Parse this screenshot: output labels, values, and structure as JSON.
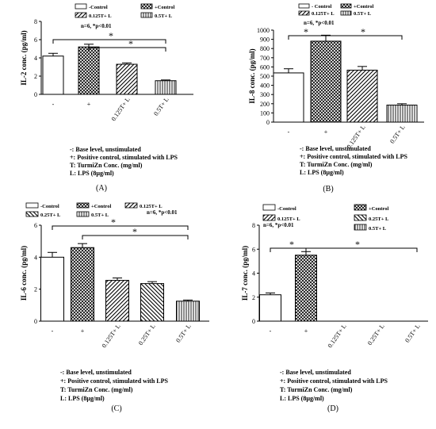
{
  "chart_data": [
    {
      "panel": "(A)",
      "type": "bar",
      "ylabel": "IL-2 conc. (pg/ml)",
      "ylim": [
        0,
        8
      ],
      "yticks": [
        "0",
        "2",
        "4",
        "6",
        "8"
      ],
      "categories": [
        "-",
        "+",
        "0.125T+ L",
        "0.5T+ L"
      ],
      "values": [
        4.2,
        5.2,
        3.3,
        1.5
      ],
      "errors": [
        0.3,
        0.3,
        0.15,
        0.08
      ],
      "patterns": [
        "blank",
        "grid",
        "diag",
        "vert"
      ],
      "legend": [
        "-Control",
        "+Control",
        "0.125T+ L",
        "0.5T+ L"
      ],
      "stat": "n=6, *p<0.01",
      "star": "*",
      "footnotes": [
        "-: Base level, unstimulated",
        "+: Positive control, stimulated with LPS",
        "T: TurmiZn Conc. (mg/ml)",
        "L: LPS (8µg/ml)"
      ]
    },
    {
      "panel": "(B)",
      "type": "bar",
      "ylabel": "IL-8 conc. (pg/ml)",
      "ylim": [
        0,
        1000
      ],
      "yticks": [
        "0",
        "100",
        "200",
        "300",
        "400",
        "500",
        "600",
        "700",
        "800",
        "900",
        "1000"
      ],
      "categories": [
        "-",
        "+",
        "0.125T+ L",
        "0.5T+ L"
      ],
      "values": [
        535,
        880,
        565,
        185
      ],
      "errors": [
        45,
        65,
        40,
        15
      ],
      "patterns": [
        "blank",
        "grid",
        "diag",
        "vert"
      ],
      "legend": [
        "- Control",
        "+Control",
        "0.125T+ L",
        "0.5T+ L"
      ],
      "stat": "n=6, *p<0.01",
      "star": "*",
      "footnotes": [
        "-: Base level, unstimulated",
        "+: Positive control, stimulated with LPS",
        "T: TurmiZn Conc. (mg/ml)",
        "L: LPS (8µg/ml)"
      ]
    },
    {
      "panel": "(C)",
      "type": "bar",
      "ylabel": "IL-6 conc. (pg/ml)",
      "ylim": [
        0,
        6
      ],
      "yticks": [
        "0",
        "2",
        "4",
        "6"
      ],
      "categories": [
        "-",
        "+",
        "0.125T+ L",
        "0.25T+ L",
        "0.5T+ L"
      ],
      "values": [
        4.0,
        4.6,
        2.55,
        2.35,
        1.25
      ],
      "errors": [
        0.3,
        0.25,
        0.15,
        0.12,
        0.07
      ],
      "patterns": [
        "blank",
        "grid",
        "diag",
        "diag2",
        "vert"
      ],
      "legend": [
        "-Control",
        "+Control",
        "0.125T+ L",
        "0.25T+ L",
        "0.5T+ L"
      ],
      "stat": "n=6, *p<0.01",
      "star": "*",
      "footnotes": [
        "-: Base level, unstimulated",
        "+: Positive control, stimulated with LPS",
        "T: TurmiZn Conc. (mg/ml)",
        "L: LPS (8µg/ml)"
      ]
    },
    {
      "panel": "(D)",
      "type": "bar",
      "ylabel": "IL-7 conc. (pg/ml)",
      "ylim": [
        0,
        8
      ],
      "yticks": [
        "0",
        "2",
        "4",
        "6",
        "8"
      ],
      "categories": [
        "-",
        "+",
        "0.125T+ L",
        "0.25T+ L",
        "0.5T+ L"
      ],
      "values": [
        2.2,
        5.5,
        0,
        0,
        0
      ],
      "errors": [
        0.15,
        0.3,
        0,
        0,
        0
      ],
      "patterns": [
        "blank",
        "grid",
        "diag",
        "diag2",
        "vert"
      ],
      "legend": [
        "-Control",
        "+Control",
        "0.125T+ L",
        "0.25T+ L",
        "0.5T+ L"
      ],
      "stat": "n=6, *p<0.01",
      "star": "*",
      "footnotes": [
        "-: Base level, unstimulated",
        "+: Positive control, stimulated with LPS",
        "T: TurmiZn Conc. (mg/ml)",
        "L: LPS (8µg/ml)"
      ]
    }
  ]
}
